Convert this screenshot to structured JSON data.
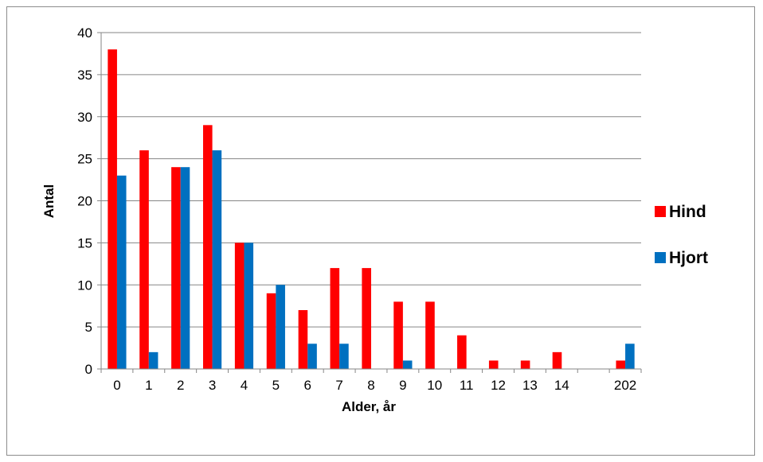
{
  "chart_data": {
    "type": "bar",
    "categories": [
      "0",
      "1",
      "2",
      "3",
      "4",
      "5",
      "6",
      "7",
      "8",
      "9",
      "10",
      "11",
      "12",
      "13",
      "14",
      "",
      "202"
    ],
    "series": [
      {
        "name": "Hind",
        "color": "#ff0000",
        "values": [
          38,
          26,
          24,
          29,
          15,
          9,
          7,
          12,
          12,
          8,
          8,
          4,
          1,
          1,
          2,
          0,
          1
        ]
      },
      {
        "name": "Hjort",
        "color": "#0070c0",
        "values": [
          23,
          2,
          24,
          26,
          15,
          10,
          3,
          3,
          0,
          1,
          0,
          0,
          0,
          0,
          0,
          0,
          3
        ]
      }
    ],
    "xlabel": "Alder, år",
    "ylabel": "Antal",
    "ylim": [
      0,
      40
    ],
    "yticks": [
      0,
      5,
      10,
      15,
      20,
      25,
      30,
      35,
      40
    ],
    "grid": true,
    "legend": "right"
  }
}
